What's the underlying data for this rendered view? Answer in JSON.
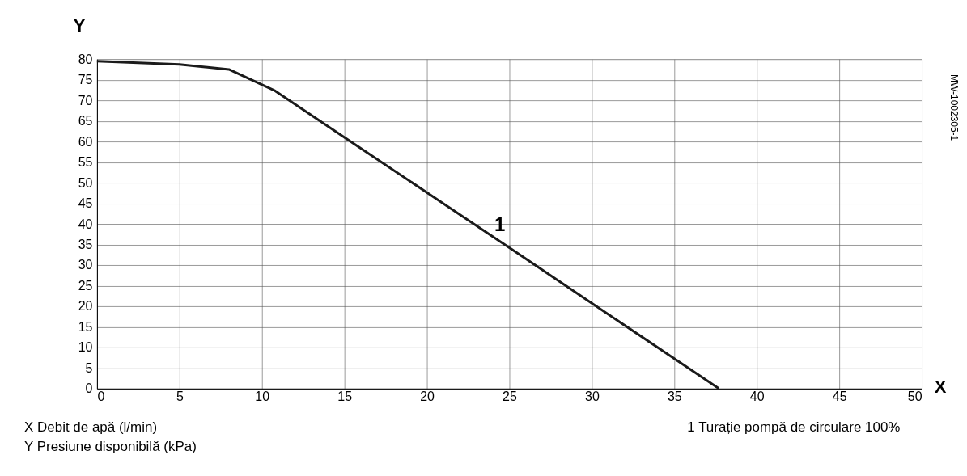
{
  "chart_data": {
    "type": "line",
    "xlabel": "X",
    "ylabel": "Y",
    "x": [
      0,
      5,
      8,
      10.8,
      15,
      20,
      25,
      30,
      35,
      37.7
    ],
    "series": [
      {
        "color": "#1a1a1a",
        "values": [
          79.5,
          78.7,
          77.5,
          72.3,
          61,
          47.6,
          34.2,
          20.7,
          7.3,
          0
        ]
      }
    ],
    "xlim": [
      0,
      50
    ],
    "xticks": [
      0,
      5,
      10,
      15,
      20,
      25,
      30,
      35,
      40,
      45,
      50
    ],
    "ylim": [
      0,
      80
    ],
    "yticks": [
      0,
      5,
      10,
      15,
      20,
      25,
      30,
      35,
      40,
      45,
      50,
      55,
      60,
      65,
      70,
      75,
      80
    ],
    "grid": true,
    "marker": "none",
    "line_style": "solid",
    "annotations": [
      {
        "text": "1",
        "x": 23.8,
        "y": 38.5
      },
      "X  Debit de apă (l/min)",
      "Y  Presiune disponibilă (kPa)",
      "1  Turație pompă de circulare 100%",
      "MW-1002305-1"
    ]
  }
}
